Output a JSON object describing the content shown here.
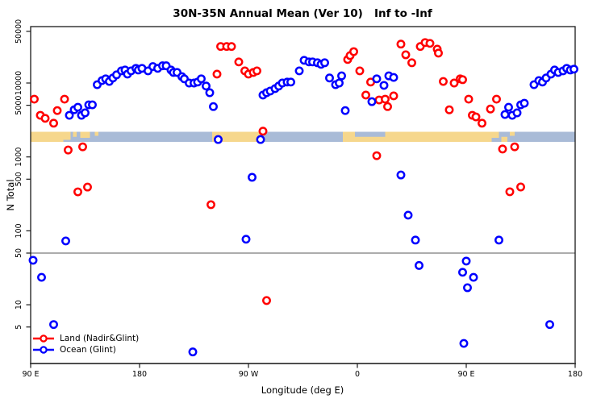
{
  "figure": {
    "title": "30N-35N Annual Mean (Ver 10)   Inf to -Inf",
    "xlabel": "Longitude (deg E)",
    "ylabel": "N Total"
  },
  "chart_data": {
    "type": "scatter",
    "title": "30N-35N Annual Mean (Ver 10)   Inf to -Inf",
    "xlabel": "Longitude (deg E)",
    "ylabel": "N Total",
    "x_axis": {
      "range_deg": [
        90,
        540
      ],
      "note": "longitude axis wraps: 90E to 180 to 90W to 0 to 90E to 180",
      "ticks": [
        {
          "pos": 90,
          "label": "90 E"
        },
        {
          "pos": 180,
          "label": "180"
        },
        {
          "pos": 270,
          "label": "90 W"
        },
        {
          "pos": 360,
          "label": "0"
        },
        {
          "pos": 450,
          "label": "90 E"
        },
        {
          "pos": 540,
          "label": "180"
        }
      ]
    },
    "y_axis": {
      "scale": "log",
      "range": [
        1.5,
        56000
      ],
      "ticks": [
        5,
        10,
        50,
        100,
        500,
        1000,
        5000,
        10000,
        50000
      ]
    },
    "reference_line_y": 50,
    "colors": {
      "land": "#FF0000",
      "ocean": "#0000FF",
      "map_ocean": "#A9BBD7",
      "map_land": "#F6D78C",
      "ref_line": "#909090",
      "frame": "#1a1a1a"
    },
    "map_band": {
      "description": "land/ocean strip of the 30N-35N latitude band drawn across the plot near N=1800",
      "y_value_center": 1800,
      "segments": [
        {
          "f": 90,
          "t": 117,
          "h": 1.0,
          "a": "f"
        },
        {
          "f": 117,
          "t": 123,
          "h": 0.8,
          "a": "t"
        },
        {
          "f": 125,
          "t": 128,
          "h": 0.5,
          "a": "t"
        },
        {
          "f": 131,
          "t": 139,
          "h": 0.6,
          "a": "t"
        },
        {
          "f": 143,
          "t": 146,
          "h": 0.4,
          "a": "t"
        },
        {
          "f": 240,
          "t": 282,
          "h": 1.0,
          "a": "f"
        },
        {
          "f": 348,
          "t": 358,
          "h": 1.0,
          "a": "f"
        },
        {
          "f": 358,
          "t": 383,
          "h": 0.5,
          "a": "b"
        },
        {
          "f": 383,
          "t": 471,
          "h": 1.0,
          "a": "f"
        },
        {
          "f": 471,
          "t": 477,
          "h": 0.6,
          "a": "t"
        },
        {
          "f": 479,
          "t": 484,
          "h": 0.5,
          "a": "b"
        },
        {
          "f": 486,
          "t": 490,
          "h": 0.4,
          "a": "t"
        }
      ]
    },
    "series": [
      {
        "name": "Land (Nadir&Glint)",
        "color_key": "land",
        "points": [
          [
            93,
            6050
          ],
          [
            98,
            3660
          ],
          [
            102,
            3330
          ],
          [
            109,
            2860
          ],
          [
            112,
            4240
          ],
          [
            118,
            6050
          ],
          [
            121,
            1240
          ],
          [
            133,
            1370
          ],
          [
            129,
            337
          ],
          [
            137,
            391
          ],
          [
            239,
            226
          ],
          [
            244,
            13200
          ],
          [
            247,
            31200
          ],
          [
            252,
            31200
          ],
          [
            256,
            31200
          ],
          [
            262,
            19300
          ],
          [
            267,
            14600
          ],
          [
            270,
            13200
          ],
          [
            274,
            13900
          ],
          [
            277,
            14600
          ],
          [
            282,
            2230
          ],
          [
            285,
            11.4
          ],
          [
            352,
            20800
          ],
          [
            354,
            23500
          ],
          [
            357,
            26600
          ],
          [
            362,
            14600
          ],
          [
            367,
            6870
          ],
          [
            371,
            10300
          ],
          [
            376,
            1040
          ],
          [
            378,
            5900
          ],
          [
            383,
            6050
          ],
          [
            385,
            4800
          ],
          [
            390,
            6700
          ],
          [
            396,
            33600
          ],
          [
            400,
            24100
          ],
          [
            405,
            18800
          ],
          [
            412,
            31200
          ],
          [
            416,
            35300
          ],
          [
            420,
            34400
          ],
          [
            426,
            28700
          ],
          [
            427,
            25400
          ],
          [
            431,
            10500
          ],
          [
            436,
            4340
          ],
          [
            440,
            10000
          ],
          [
            445,
            11400
          ],
          [
            447,
            11100
          ],
          [
            452,
            6050
          ],
          [
            455,
            3660
          ],
          [
            458,
            3480
          ],
          [
            463,
            2860
          ],
          [
            470,
            4450
          ],
          [
            475,
            6050
          ],
          [
            480,
            1280
          ],
          [
            490,
            1370
          ],
          [
            486,
            338
          ],
          [
            495,
            392
          ]
        ]
      },
      {
        "name": "Ocean (Glint)",
        "color_key": "ocean",
        "points": [
          [
            122,
            3660
          ],
          [
            126,
            4350
          ],
          [
            129,
            4700
          ],
          [
            132,
            3660
          ],
          [
            135,
            3950
          ],
          [
            138,
            5070
          ],
          [
            141,
            5070
          ],
          [
            145,
            9500
          ],
          [
            149,
            10800
          ],
          [
            152,
            11400
          ],
          [
            155,
            10500
          ],
          [
            158,
            11700
          ],
          [
            161,
            12900
          ],
          [
            165,
            14600
          ],
          [
            168,
            15000
          ],
          [
            170,
            13200
          ],
          [
            173,
            14600
          ],
          [
            177,
            15800
          ],
          [
            179,
            15000
          ],
          [
            182,
            15800
          ],
          [
            187,
            14600
          ],
          [
            191,
            16700
          ],
          [
            195,
            15800
          ],
          [
            199,
            17100
          ],
          [
            202,
            17100
          ],
          [
            206,
            15000
          ],
          [
            208,
            13900
          ],
          [
            211,
            13900
          ],
          [
            215,
            12200
          ],
          [
            217,
            11400
          ],
          [
            221,
            10000
          ],
          [
            225,
            10000
          ],
          [
            228,
            10300
          ],
          [
            231,
            11400
          ],
          [
            235,
            9100
          ],
          [
            238,
            7400
          ],
          [
            241,
            4800
          ],
          [
            92,
            40
          ],
          [
            99,
            23.5
          ],
          [
            109,
            5.4
          ],
          [
            119,
            73
          ],
          [
            224,
            2.3
          ],
          [
            245,
            1720
          ],
          [
            268,
            77
          ],
          [
            273,
            530
          ],
          [
            280,
            1720
          ],
          [
            282,
            6870
          ],
          [
            285,
            7400
          ],
          [
            288,
            7800
          ],
          [
            292,
            8400
          ],
          [
            295,
            9100
          ],
          [
            298,
            10000
          ],
          [
            302,
            10300
          ],
          [
            305,
            10300
          ],
          [
            312,
            14600
          ],
          [
            316,
            20300
          ],
          [
            320,
            19300
          ],
          [
            323,
            19300
          ],
          [
            327,
            18800
          ],
          [
            330,
            17900
          ],
          [
            333,
            18800
          ],
          [
            337,
            11700
          ],
          [
            342,
            9500
          ],
          [
            345,
            10000
          ],
          [
            347,
            12500
          ],
          [
            350,
            4240
          ],
          [
            372,
            5600
          ],
          [
            376,
            11400
          ],
          [
            382,
            9300
          ],
          [
            386,
            12500
          ],
          [
            390,
            11900
          ],
          [
            396,
            570
          ],
          [
            402,
            163
          ],
          [
            408,
            75
          ],
          [
            411,
            34
          ],
          [
            447,
            27.5
          ],
          [
            448,
            3.0
          ],
          [
            450,
            39
          ],
          [
            451,
            17
          ],
          [
            456,
            23.5
          ],
          [
            477,
            75
          ],
          [
            519,
            5.4
          ],
          [
            482,
            3750
          ],
          [
            485,
            4700
          ],
          [
            488,
            3660
          ],
          [
            492,
            3950
          ],
          [
            495,
            5070
          ],
          [
            498,
            5330
          ],
          [
            506,
            9500
          ],
          [
            510,
            10800
          ],
          [
            513,
            10300
          ],
          [
            516,
            11700
          ],
          [
            520,
            13200
          ],
          [
            523,
            15000
          ],
          [
            526,
            13900
          ],
          [
            530,
            14600
          ],
          [
            533,
            15800
          ],
          [
            536,
            15000
          ],
          [
            539,
            15400
          ]
        ]
      }
    ],
    "legend_position": "bottom-left"
  }
}
